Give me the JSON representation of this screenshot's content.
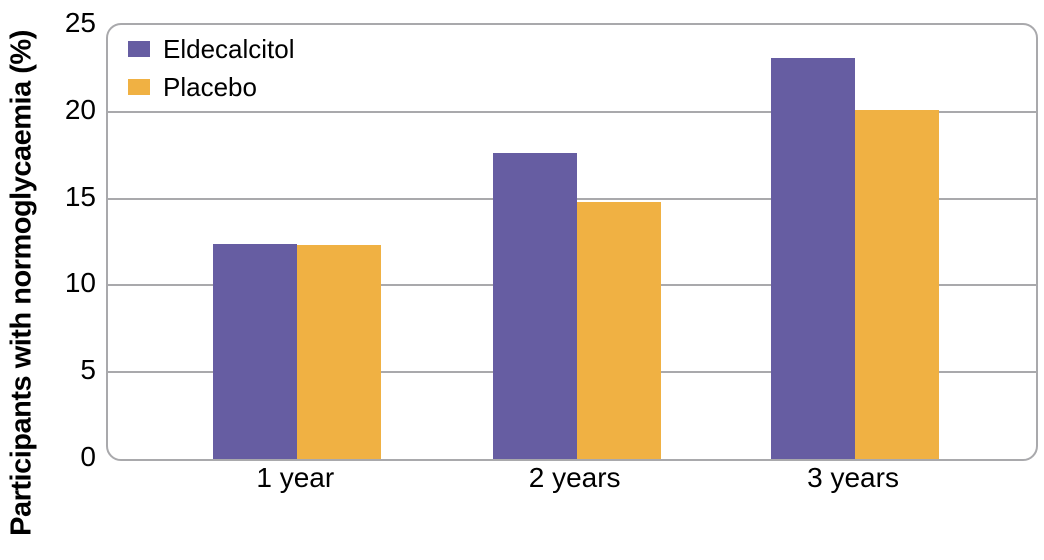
{
  "chart_data": {
    "type": "bar",
    "categories": [
      "1 year",
      "2 years",
      "3 years"
    ],
    "series": [
      {
        "name": "Eldecalcitol",
        "color": "#665DA2",
        "values": [
          12.4,
          17.6,
          23.1
        ]
      },
      {
        "name": "Placebo",
        "color": "#F0B143",
        "values": [
          12.3,
          14.8,
          20.1
        ]
      }
    ],
    "title": "",
    "xlabel": "",
    "ylabel": "Participants with normoglycaemia (%)",
    "ylim": [
      0,
      25
    ],
    "yticks": [
      0,
      5,
      10,
      15,
      20,
      25
    ],
    "grid": true,
    "legend_position": "top-left",
    "frame_color": "#A9A9AC",
    "grid_color": "#A9A9AC",
    "text_color": "#000000",
    "background_color": "#FFFFFF"
  }
}
